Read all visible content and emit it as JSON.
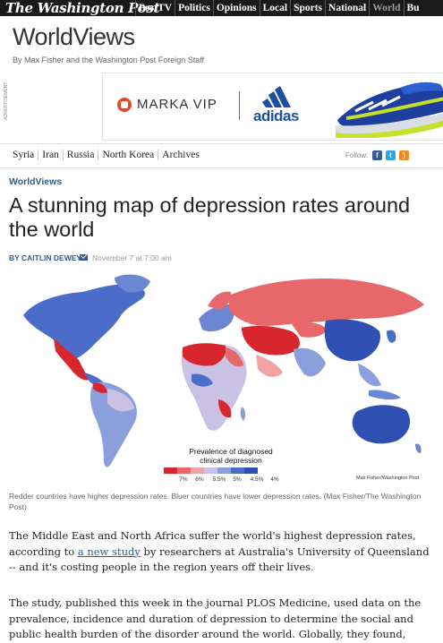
{
  "site": {
    "logo": "The Washington Post",
    "nav": [
      "PostTV",
      "Politics",
      "Opinions",
      "Local",
      "Sports",
      "National",
      "World",
      "Bu"
    ]
  },
  "blog": {
    "name": "WorldViews",
    "byline": "By Max Fisher and the Washington Post Foreign Staff"
  },
  "ad": {
    "label": "ADVERTISEMENT",
    "brand1": "MARKA VIP",
    "brand2": "adidas"
  },
  "subnav": {
    "links": [
      "Syria",
      "Iran",
      "Russia",
      "North Korea",
      "Archives"
    ],
    "follow_label": "Follow:",
    "icons": [
      "facebook-icon",
      "twitter-icon",
      "rss-icon"
    ]
  },
  "article": {
    "kicker": "WorldViews",
    "headline": "A stunning map of depression rates around the world",
    "author": "BY CAITLIN DEWEY",
    "date": "November 7 at 7:00 am",
    "caption": "Redder countries have higher depression rates. Bluer countries have lower depression rates. (Max Fisher/The Washington Post)",
    "p1_before": "The Middle East and North Africa suffer the world's highest depression rates, according to ",
    "p1_link": "a new study",
    "p1_after": " by researchers at Australia's University of Queensland -- and it's costing people in the region years off their lives.",
    "p2": "The study, published this week in the journal PLOS Medicine, used data on the prevalence, incidence and duration of depression to determine the social and public health burden of the disorder around the world. Globally, they found,"
  },
  "map": {
    "legend_title": "Prevalence of diagnosed clinical depression",
    "legend_ticks": [
      "7%",
      "6%",
      "5.5%",
      "5%",
      "4.5%",
      "4%"
    ],
    "credit": "Max Fisher/Washington Post",
    "legend_colors": [
      "#d7262e",
      "#e8676a",
      "#f2a3a4",
      "#c9c2e4",
      "#8a9fdc",
      "#4b6cc9",
      "#2f4fb3"
    ]
  }
}
